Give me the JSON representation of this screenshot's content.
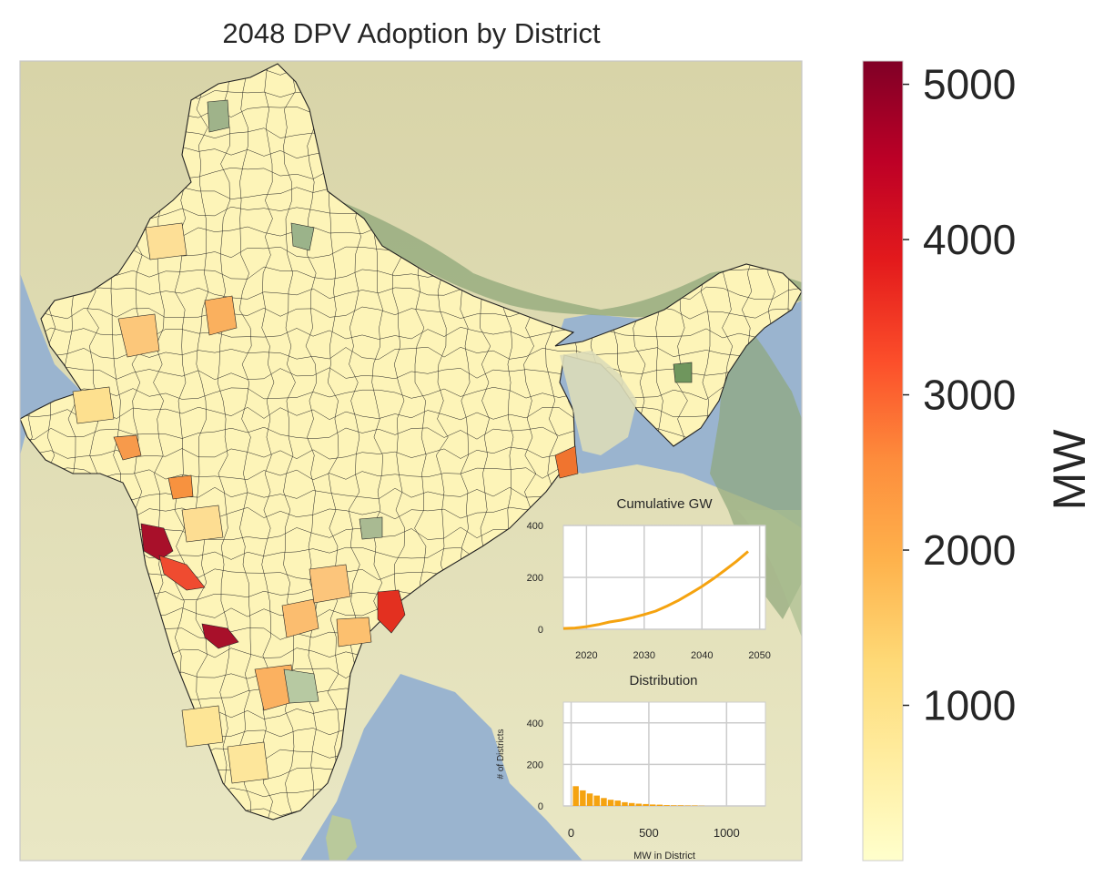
{
  "main_map": {
    "title": "2048 DPV Adoption by District",
    "colors": {
      "sea": "#9ab4cf",
      "land_plain": "#e8e6c0",
      "land_mountain": "#d9d6ae",
      "forest": "#8fa77a",
      "district_border": "#222222",
      "map_frame": "#c8c8c8"
    }
  },
  "colorbar": {
    "label": "MW",
    "ticks": [
      "1000",
      "2000",
      "3000",
      "4000",
      "5000"
    ],
    "tick_values": [
      1000,
      2000,
      3000,
      4000,
      5000
    ],
    "range": [
      0,
      5150
    ],
    "stops": [
      "#ffffcc",
      "#ffeda0",
      "#fed976",
      "#feb24c",
      "#fd8d3c",
      "#fc4e2a",
      "#e31a1c",
      "#bd0026",
      "#800026"
    ]
  },
  "chart_data": [
    {
      "type": "line",
      "title": "Cumulative GW",
      "x": [
        2016,
        2018,
        2020,
        2022,
        2024,
        2026,
        2028,
        2030,
        2032,
        2034,
        2036,
        2038,
        2040,
        2042,
        2044,
        2046,
        2048
      ],
      "series": [
        {
          "values": [
            3,
            5,
            10,
            18,
            28,
            35,
            45,
            57,
            70,
            90,
            112,
            138,
            165,
            195,
            228,
            262,
            300
          ]
        }
      ],
      "xticks": [
        "2020",
        "2030",
        "2040",
        "2050"
      ],
      "xtick_values": [
        2020,
        2030,
        2040,
        2050
      ],
      "yticks": [
        "0",
        "200",
        "400"
      ],
      "ytick_values": [
        0,
        200,
        400
      ],
      "xlim": [
        2016,
        2051
      ],
      "ylim": [
        0,
        400
      ],
      "grid": true,
      "line_color": "#f5a310"
    },
    {
      "type": "bar",
      "title": "Distribution",
      "xlabel": "MW in District",
      "ylabel": "# of Districts",
      "x": [
        30,
        75,
        120,
        165,
        210,
        255,
        300,
        345,
        390,
        435,
        480,
        525,
        570,
        615,
        660,
        705,
        750,
        795,
        840
      ],
      "values": [
        95,
        75,
        60,
        50,
        38,
        30,
        26,
        18,
        14,
        11,
        9,
        7,
        6,
        4,
        3,
        3,
        2,
        2,
        1
      ],
      "xticks": [
        "0",
        "500",
        "1000"
      ],
      "xtick_values": [
        0,
        500,
        1000
      ],
      "yticks": [
        "0",
        "200",
        "400"
      ],
      "ytick_values": [
        0,
        200,
        400
      ],
      "xlim": [
        -50,
        1250
      ],
      "ylim": [
        0,
        500
      ],
      "grid": true,
      "bar_color": "#f5a310"
    }
  ]
}
